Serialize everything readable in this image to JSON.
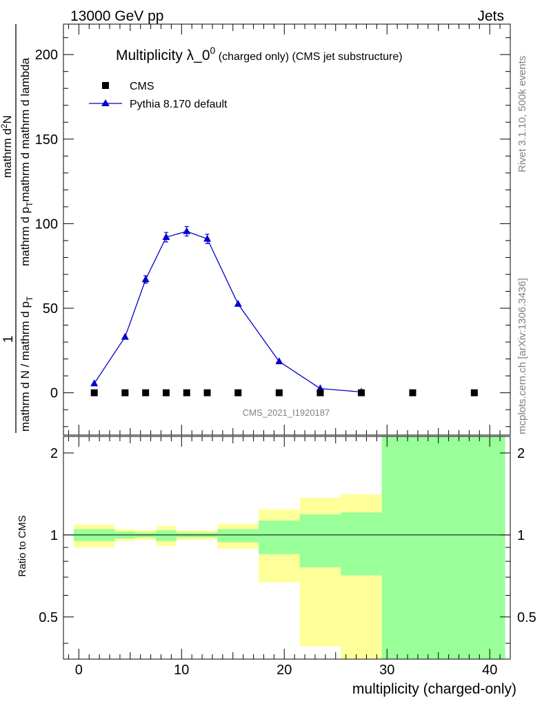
{
  "header": {
    "left": "13000 GeV pp",
    "right": "Jets"
  },
  "side": {
    "rivet": "Rivet 3.1.10,  500k events",
    "mcplots": "mcplots.cern.ch [arXiv:1306.3436]"
  },
  "chart_data": [
    {
      "type": "line",
      "title_main": "Multiplicity λ_0",
      "title_sup": "0",
      "title_tail": " (charged only) (CMS jet substructure)",
      "watermark": "CMS_2021_I1920187",
      "ylabel_parts": {
        "one": "1",
        "frac_num": "mathrm dN / mathrm d p",
        "frac_den": "mathrm d N / mathrm d p",
        "mid": "mathrm d p",
        "sub_T": "T",
        "dN": "mathrm d",
        "sup_2": "2",
        "N": "N",
        "lambda_tail": " mathrm d lambda"
      },
      "xlim": [
        -1.5,
        42
      ],
      "ylim": [
        -25,
        218
      ],
      "yticks": [
        0,
        50,
        100,
        150,
        200
      ],
      "legend": [
        {
          "name": "CMS",
          "marker": "square",
          "color": "#000000"
        },
        {
          "name": "Pythia 8.170 default",
          "marker": "triangle",
          "color": "#0000cc"
        }
      ],
      "series": [
        {
          "name": "CMS",
          "x": [
            1.5,
            4.5,
            6.5,
            8.5,
            10.5,
            12.5,
            15.5,
            19.5,
            23.5,
            27.5,
            32.5,
            38.5
          ],
          "y": [
            0,
            0,
            0,
            0,
            0,
            0,
            0,
            0,
            0,
            0,
            0,
            0
          ]
        },
        {
          "name": "Pythia 8.170 default",
          "x": [
            1.5,
            4.5,
            6.5,
            8.5,
            10.5,
            12.5,
            15.5,
            19.5,
            23.5,
            27.5
          ],
          "y": [
            5.5,
            33,
            67,
            92,
            95.5,
            91,
            52.5,
            18.5,
            2.5,
            0.5
          ],
          "err": [
            0.5,
            1.2,
            2.2,
            2.8,
            2.8,
            2.8,
            1.2,
            0.8,
            0.3,
            0.1
          ]
        }
      ]
    },
    {
      "type": "area",
      "ylabel": "Ratio to CMS",
      "xlabel": "multiplicity (charged-only)",
      "xlim": [
        -1.5,
        42
      ],
      "ylim": [
        0.35,
        2.3
      ],
      "yticks": [
        0.5,
        1,
        2
      ],
      "ytick_labels": [
        "0.5",
        "1",
        "2"
      ],
      "xticks": [
        0,
        10,
        20,
        30,
        40
      ],
      "xtick_labels": [
        "0",
        "10",
        "20",
        "30",
        "40"
      ],
      "colors": {
        "stat": "#99ff99",
        "total": "#ffff99"
      },
      "bands": [
        {
          "x0": -0.5,
          "x1": 3.5,
          "yellow": [
            0.9,
            1.09
          ],
          "green": [
            0.95,
            1.05
          ]
        },
        {
          "x0": 3.5,
          "x1": 5.5,
          "yellow": [
            0.95,
            1.05
          ],
          "green": [
            0.97,
            1.03
          ]
        },
        {
          "x0": 5.5,
          "x1": 7.5,
          "yellow": [
            0.96,
            1.04
          ],
          "green": [
            0.98,
            1.02
          ]
        },
        {
          "x0": 7.5,
          "x1": 9.5,
          "yellow": [
            0.91,
            1.08
          ],
          "green": [
            0.95,
            1.04
          ]
        },
        {
          "x0": 9.5,
          "x1": 11.5,
          "yellow": [
            0.96,
            1.04
          ],
          "green": [
            0.98,
            1.02
          ]
        },
        {
          "x0": 11.5,
          "x1": 13.5,
          "yellow": [
            0.96,
            1.04
          ],
          "green": [
            0.98,
            1.02
          ]
        },
        {
          "x0": 13.5,
          "x1": 17.5,
          "yellow": [
            0.89,
            1.1
          ],
          "green": [
            0.94,
            1.05
          ]
        },
        {
          "x0": 17.5,
          "x1": 21.5,
          "yellow": [
            0.67,
            1.24
          ],
          "green": [
            0.85,
            1.13
          ]
        },
        {
          "x0": 21.5,
          "x1": 25.5,
          "yellow": [
            0.39,
            1.37
          ],
          "green": [
            0.76,
            1.19
          ]
        },
        {
          "x0": 25.5,
          "x1": 29.5,
          "yellow": [
            0.35,
            1.41
          ],
          "green": [
            0.71,
            1.21
          ]
        },
        {
          "x0": 29.5,
          "x1": 41.5,
          "yellow": [
            0.35,
            2.3
          ],
          "green": [
            0.35,
            2.3
          ]
        }
      ]
    }
  ]
}
